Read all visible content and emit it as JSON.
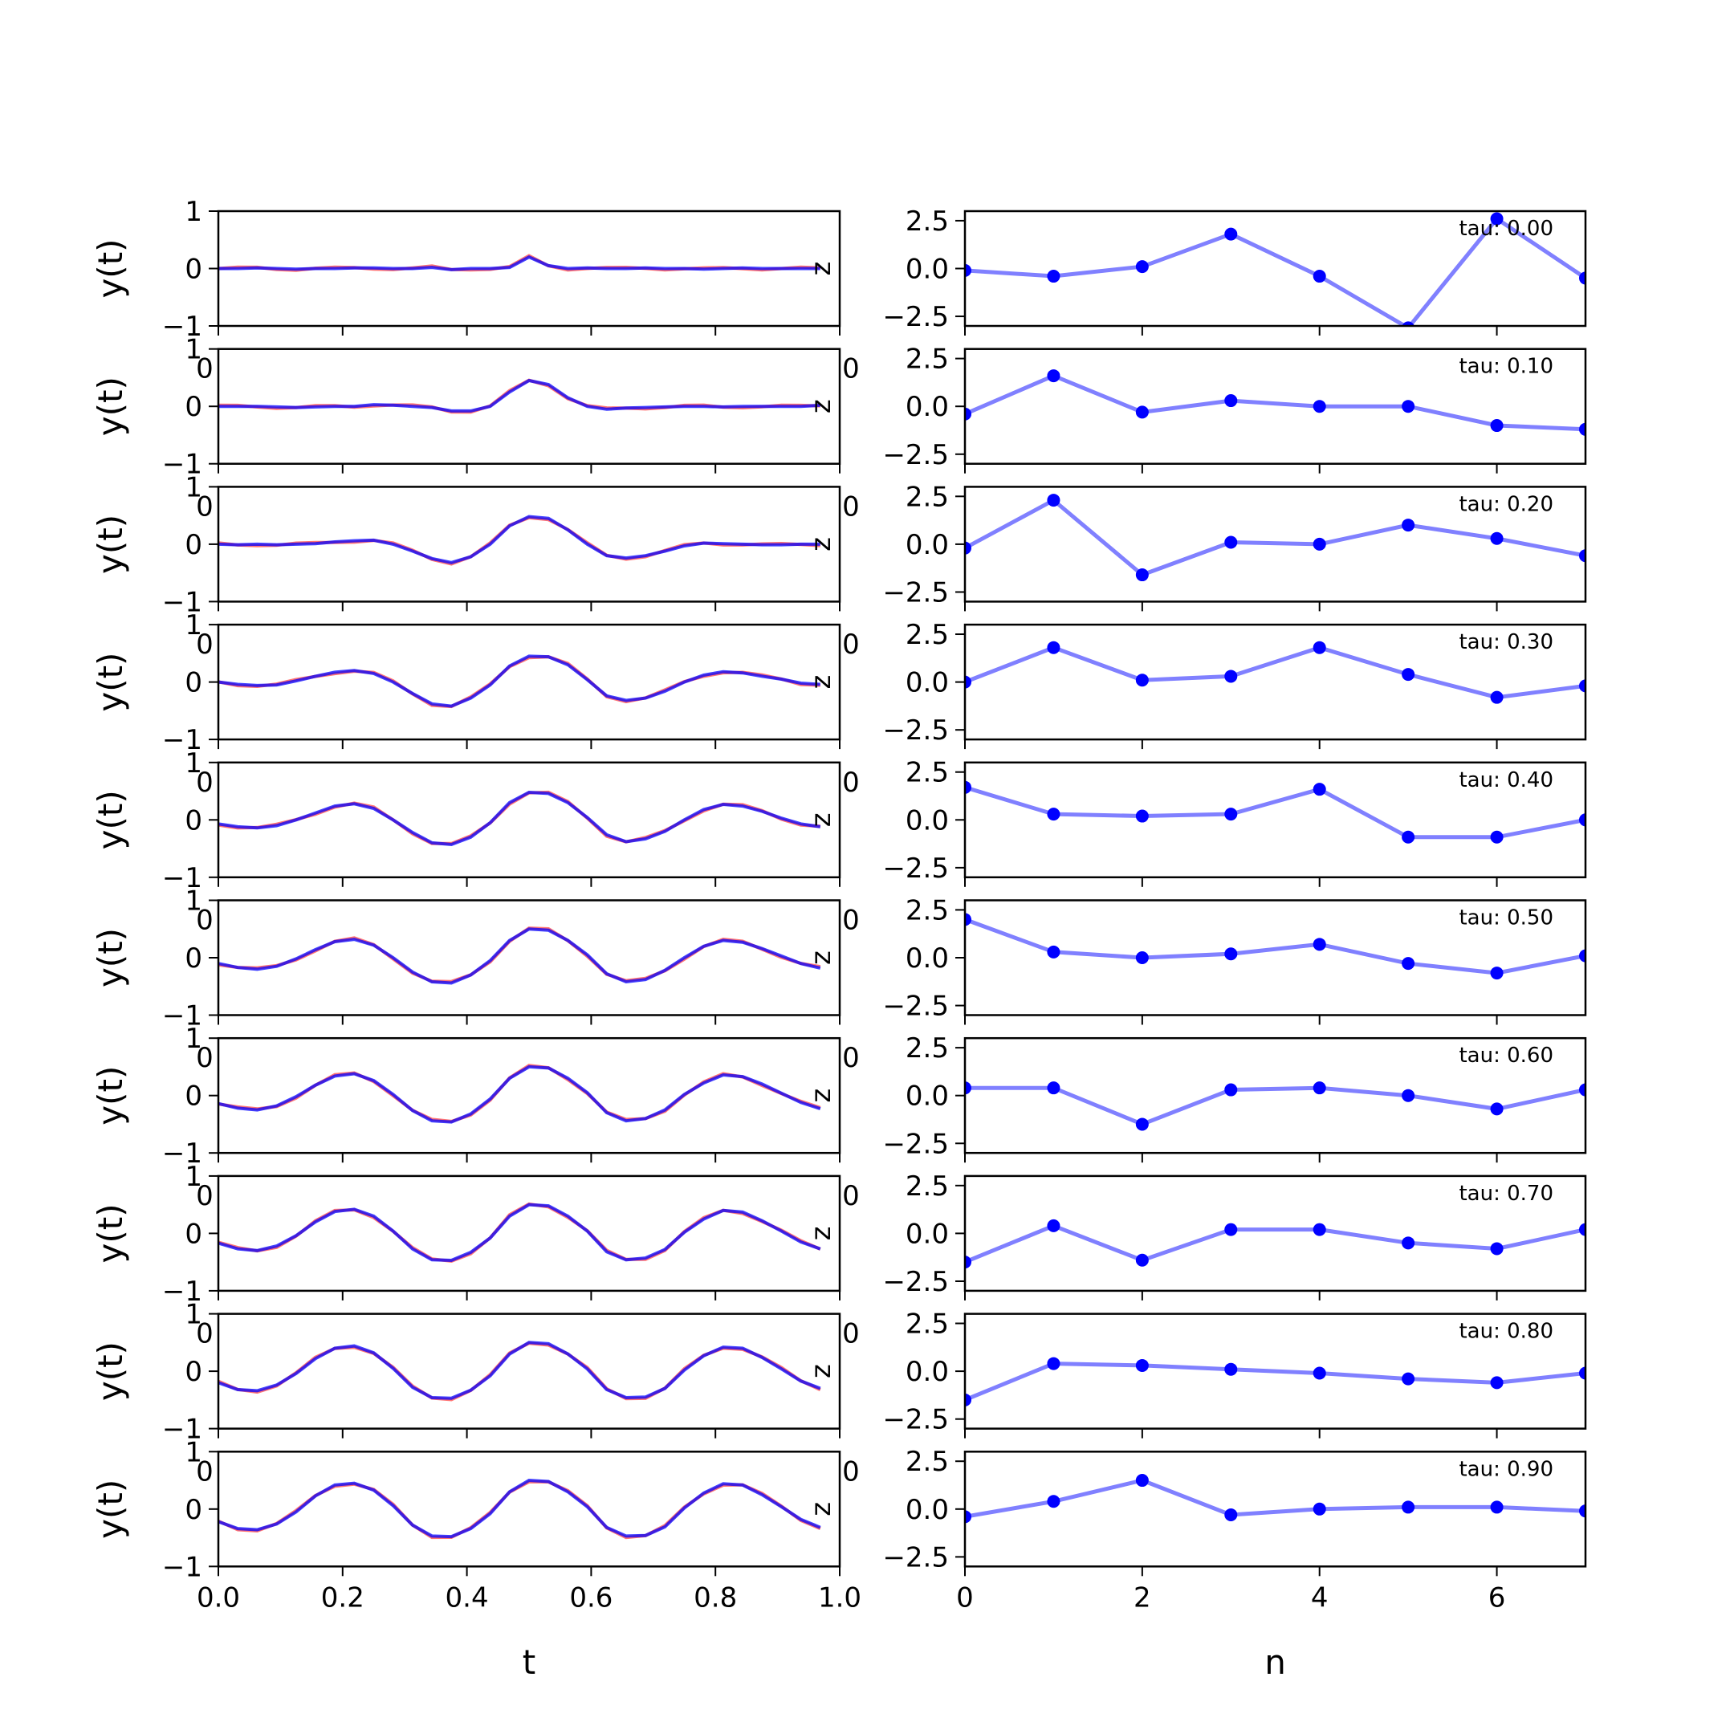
{
  "chart_data": [
    {
      "type": "line",
      "name": "left-column",
      "ylabel": "y(t)",
      "xlabel": "t",
      "xlim": [
        0,
        1
      ],
      "ylim": [
        -1,
        1
      ],
      "x_ticks": [
        "0.0",
        "0.2",
        "0.4",
        "0.6",
        "0.8",
        "1.0"
      ],
      "y_ticks": [
        "−1",
        "0",
        "1"
      ],
      "series_colors": {
        "red": "#ff0000",
        "blue": "#0000ff",
        "overlap": "#7a0080"
      },
      "t_base": [
        0.0,
        0.03125,
        0.0625,
        0.09375,
        0.125,
        0.15625,
        0.1875,
        0.21875,
        0.25,
        0.28125,
        0.3125,
        0.34375,
        0.375,
        0.40625,
        0.4375,
        0.46875,
        0.5,
        0.53125,
        0.5625,
        0.59375,
        0.625,
        0.65625,
        0.6875,
        0.71875,
        0.75,
        0.78125,
        0.8125,
        0.84375,
        0.875,
        0.90625,
        0.9375,
        0.96875
      ],
      "panels": [
        {
          "tau": 0.0,
          "values": [
            0.0,
            0.0,
            0.01,
            0.0,
            -0.01,
            0.0,
            0.0,
            0.01,
            0.01,
            0.0,
            0.0,
            0.02,
            -0.02,
            0.0,
            0.0,
            0.02,
            0.2,
            0.05,
            0.0,
            0.01,
            0.0,
            0.0,
            0.01,
            0.0,
            0.0,
            -0.01,
            0.0,
            0.01,
            0.0,
            0.0,
            0.0,
            0.0
          ]
        },
        {
          "tau": 0.1,
          "values": [
            0.0,
            0.0,
            0.0,
            -0.01,
            -0.02,
            -0.01,
            0.0,
            0.0,
            0.03,
            0.02,
            0.0,
            -0.02,
            -0.08,
            -0.08,
            0.0,
            0.25,
            0.45,
            0.38,
            0.15,
            0.0,
            -0.05,
            -0.03,
            -0.02,
            -0.01,
            0.0,
            0.0,
            -0.01,
            0.0,
            0.0,
            0.0,
            0.0,
            0.02
          ]
        },
        {
          "tau": 0.2,
          "values": [
            0.0,
            -0.01,
            0.0,
            -0.01,
            0.0,
            0.01,
            0.04,
            0.06,
            0.07,
            0.0,
            -0.12,
            -0.25,
            -0.32,
            -0.22,
            0.0,
            0.32,
            0.48,
            0.45,
            0.25,
            0.0,
            -0.2,
            -0.24,
            -0.2,
            -0.12,
            -0.03,
            0.02,
            0.01,
            0.0,
            -0.01,
            -0.01,
            0.0,
            0.0
          ]
        },
        {
          "tau": 0.3,
          "values": [
            0.0,
            -0.04,
            -0.06,
            -0.05,
            0.02,
            0.1,
            0.17,
            0.2,
            0.15,
            0.0,
            -0.2,
            -0.38,
            -0.42,
            -0.28,
            -0.05,
            0.28,
            0.45,
            0.44,
            0.3,
            0.04,
            -0.24,
            -0.32,
            -0.28,
            -0.16,
            0.0,
            0.12,
            0.18,
            0.16,
            0.1,
            0.05,
            -0.02,
            -0.04
          ]
        },
        {
          "tau": 0.4,
          "values": [
            -0.07,
            -0.12,
            -0.14,
            -0.1,
            0.0,
            0.12,
            0.24,
            0.28,
            0.2,
            0.0,
            -0.22,
            -0.4,
            -0.43,
            -0.3,
            -0.05,
            0.3,
            0.48,
            0.46,
            0.3,
            0.04,
            -0.26,
            -0.38,
            -0.33,
            -0.2,
            0.0,
            0.18,
            0.27,
            0.24,
            0.15,
            0.03,
            -0.07,
            -0.12
          ]
        },
        {
          "tau": 0.5,
          "values": [
            -0.1,
            -0.17,
            -0.2,
            -0.15,
            -0.02,
            0.14,
            0.28,
            0.32,
            0.22,
            0.0,
            -0.25,
            -0.42,
            -0.44,
            -0.3,
            -0.05,
            0.3,
            0.5,
            0.48,
            0.3,
            0.05,
            -0.28,
            -0.42,
            -0.38,
            -0.22,
            0.0,
            0.2,
            0.3,
            0.27,
            0.16,
            0.03,
            -0.1,
            -0.18
          ]
        },
        {
          "tau": 0.6,
          "values": [
            -0.14,
            -0.22,
            -0.25,
            -0.18,
            -0.02,
            0.18,
            0.34,
            0.38,
            0.26,
            0.02,
            -0.26,
            -0.44,
            -0.46,
            -0.32,
            -0.06,
            0.3,
            0.5,
            0.48,
            0.3,
            0.05,
            -0.3,
            -0.44,
            -0.4,
            -0.25,
            0.02,
            0.22,
            0.36,
            0.33,
            0.2,
            0.04,
            -0.12,
            -0.23
          ]
        },
        {
          "tau": 0.7,
          "values": [
            -0.17,
            -0.27,
            -0.3,
            -0.22,
            -0.04,
            0.2,
            0.38,
            0.42,
            0.3,
            0.04,
            -0.27,
            -0.46,
            -0.47,
            -0.33,
            -0.08,
            0.3,
            0.5,
            0.48,
            0.3,
            0.04,
            -0.32,
            -0.46,
            -0.43,
            -0.28,
            0.02,
            0.25,
            0.4,
            0.37,
            0.22,
            0.04,
            -0.15,
            -0.27
          ]
        },
        {
          "tau": 0.8,
          "values": [
            -0.2,
            -0.32,
            -0.34,
            -0.24,
            -0.04,
            0.22,
            0.4,
            0.44,
            0.32,
            0.05,
            -0.28,
            -0.46,
            -0.47,
            -0.33,
            -0.08,
            0.3,
            0.5,
            0.48,
            0.3,
            0.04,
            -0.32,
            -0.46,
            -0.45,
            -0.3,
            0.02,
            0.27,
            0.42,
            0.4,
            0.24,
            0.04,
            -0.17,
            -0.3
          ]
        },
        {
          "tau": 0.9,
          "values": [
            -0.22,
            -0.34,
            -0.36,
            -0.26,
            -0.05,
            0.23,
            0.42,
            0.45,
            0.33,
            0.06,
            -0.28,
            -0.47,
            -0.48,
            -0.34,
            -0.08,
            0.3,
            0.5,
            0.48,
            0.3,
            0.04,
            -0.32,
            -0.47,
            -0.46,
            -0.31,
            0.02,
            0.28,
            0.44,
            0.42,
            0.25,
            0.04,
            -0.18,
            -0.32
          ]
        }
      ]
    },
    {
      "type": "line",
      "name": "right-column",
      "xlabel": "n",
      "xlim": [
        0,
        7
      ],
      "ylim": [
        -3,
        3
      ],
      "x_ticks": [
        "0",
        "2",
        "4",
        "6"
      ],
      "y_ticks": [
        "−2.5",
        "0.0",
        "2.5"
      ],
      "line_color": "#8080ff",
      "marker_color": "#0000ff",
      "n": [
        0,
        1,
        2,
        3,
        4,
        5,
        6,
        7
      ],
      "panels": [
        {
          "tau_label": "tau: 0.00",
          "values": [
            -0.1,
            -0.4,
            0.1,
            1.8,
            -0.4,
            -3.1,
            2.6,
            -0.5
          ]
        },
        {
          "tau_label": "tau: 0.10",
          "values": [
            -0.4,
            1.6,
            -0.3,
            0.3,
            0.0,
            0.0,
            -1.0,
            -1.2
          ]
        },
        {
          "tau_label": "tau: 0.20",
          "values": [
            -0.2,
            2.3,
            -1.6,
            0.1,
            0.0,
            1.0,
            0.3,
            -0.6
          ]
        },
        {
          "tau_label": "tau: 0.30",
          "values": [
            0.0,
            1.8,
            0.1,
            0.3,
            1.8,
            0.4,
            -0.8,
            -0.2
          ]
        },
        {
          "tau_label": "tau: 0.40",
          "values": [
            1.7,
            0.3,
            0.2,
            0.3,
            1.6,
            -0.9,
            -0.9,
            0.0
          ]
        },
        {
          "tau_label": "tau: 0.50",
          "values": [
            2.0,
            0.3,
            0.0,
            0.2,
            0.7,
            -0.3,
            -0.8,
            0.1
          ]
        },
        {
          "tau_label": "tau: 0.60",
          "values": [
            0.4,
            0.4,
            -1.5,
            0.3,
            0.4,
            0.0,
            -0.7,
            0.3
          ]
        },
        {
          "tau_label": "tau: 0.70",
          "values": [
            -1.5,
            0.4,
            -1.4,
            0.2,
            0.2,
            -0.5,
            -0.8,
            0.2
          ]
        },
        {
          "tau_label": "tau: 0.80",
          "values": [
            -1.5,
            0.4,
            0.3,
            0.1,
            -0.1,
            -0.4,
            -0.6,
            -0.1
          ]
        },
        {
          "tau_label": "tau: 0.90",
          "values": [
            -0.4,
            0.4,
            1.5,
            -0.3,
            0.0,
            0.1,
            0.1,
            -0.1
          ]
        }
      ]
    }
  ],
  "stray_glyphs": {
    "z": "z",
    "zero": "0"
  }
}
